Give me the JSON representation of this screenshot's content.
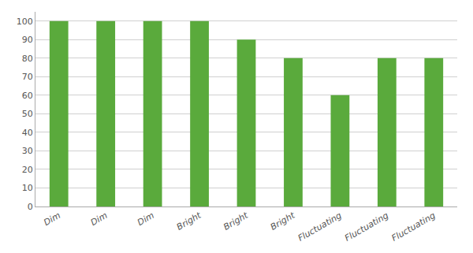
{
  "chart_data": {
    "type": "bar",
    "categories": [
      "Dim",
      "Dim",
      "Dim",
      "Bright",
      "Bright",
      "Bright",
      "Fluctuating",
      "Fluctuating",
      "Fluctuating"
    ],
    "values": [
      100,
      100,
      100,
      100,
      90,
      80,
      60,
      80,
      80
    ],
    "color": "#5aaa3c",
    "ylim": [
      0,
      105
    ],
    "yticks": [
      0,
      10,
      20,
      30,
      40,
      50,
      60,
      70,
      80,
      90,
      100
    ],
    "grid": true
  }
}
